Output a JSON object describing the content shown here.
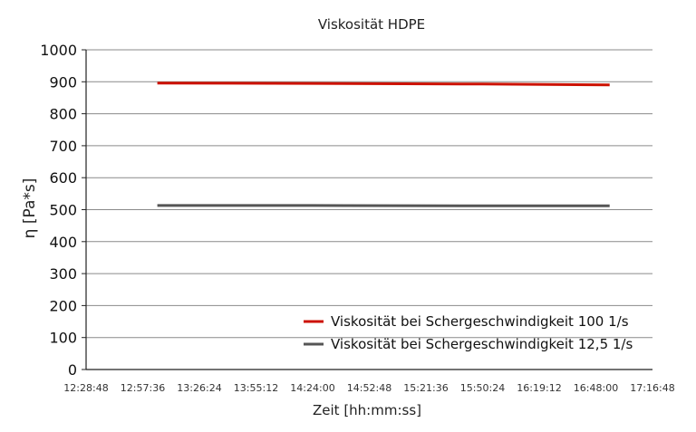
{
  "chart_data": {
    "type": "line",
    "title": "Viskosität HDPE",
    "xlabel": "Zeit [hh:mm:ss]",
    "ylabel": "η [Pa*s]",
    "x_ticks": [
      "12:28:48",
      "12:57:36",
      "13:26:24",
      "13:55:12",
      "14:24:00",
      "14:52:48",
      "15:21:36",
      "15:50:24",
      "16:19:12",
      "16:48:00",
      "17:16:48"
    ],
    "xlim": [
      "12:28:48",
      "17:16:48"
    ],
    "ylim": [
      0,
      1000
    ],
    "y_ticks": [
      0,
      100,
      200,
      300,
      400,
      500,
      600,
      700,
      800,
      900,
      1000
    ],
    "grid": true,
    "legend_position": "bottom-right",
    "series": [
      {
        "name": "Viskosität bei Schergeschwindigkeit 100 1/s",
        "color": "#cc1100",
        "x": [
          "13:05:00",
          "14:24:00",
          "15:50:24",
          "16:55:00"
        ],
        "values": [
          896,
          895,
          893,
          890
        ]
      },
      {
        "name": "Viskosität bei Schergeschwindigkeit 12,5 1/s",
        "color": "#555555",
        "x": [
          "13:05:00",
          "14:24:00",
          "15:50:24",
          "16:55:00"
        ],
        "values": [
          513,
          513,
          512,
          512
        ]
      }
    ]
  }
}
